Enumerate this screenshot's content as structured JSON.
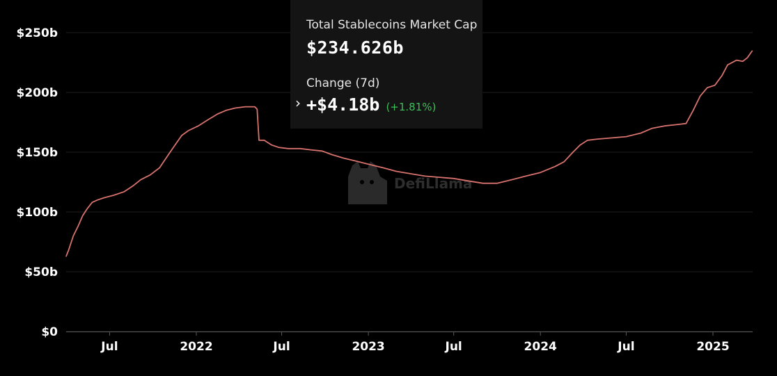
{
  "chart_data": {
    "type": "line",
    "title": "",
    "xlabel": "",
    "ylabel": "",
    "ylim": [
      0,
      250
    ],
    "y_ticks": [
      {
        "value": 0,
        "label": "$0"
      },
      {
        "value": 50,
        "label": "$50b"
      },
      {
        "value": 100,
        "label": "$100b"
      },
      {
        "value": 150,
        "label": "$150b"
      },
      {
        "value": 200,
        "label": "$200b"
      },
      {
        "value": 250,
        "label": "$250b"
      }
    ],
    "x_ticks": [
      {
        "date": "2021-07-01",
        "label": "Jul"
      },
      {
        "date": "2022-01-01",
        "label": "2022"
      },
      {
        "date": "2022-07-01",
        "label": "Jul"
      },
      {
        "date": "2023-01-01",
        "label": "2023"
      },
      {
        "date": "2023-07-01",
        "label": "Jul"
      },
      {
        "date": "2024-01-01",
        "label": "2024"
      },
      {
        "date": "2024-07-01",
        "label": "Jul"
      },
      {
        "date": "2025-01-01",
        "label": "2025"
      }
    ],
    "series": [
      {
        "color": "#d9736e",
        "points": [
          [
            "2021-03-31",
            63
          ],
          [
            "2021-04-05",
            68
          ],
          [
            "2021-04-15",
            80
          ],
          [
            "2021-04-25",
            88
          ],
          [
            "2021-05-05",
            97
          ],
          [
            "2021-05-15",
            103
          ],
          [
            "2021-05-25",
            108
          ],
          [
            "2021-06-05",
            110
          ],
          [
            "2021-06-20",
            112
          ],
          [
            "2021-07-10",
            114
          ],
          [
            "2021-08-01",
            117
          ],
          [
            "2021-08-20",
            122
          ],
          [
            "2021-09-05",
            127
          ],
          [
            "2021-09-25",
            131
          ],
          [
            "2021-10-15",
            137
          ],
          [
            "2021-11-01",
            147
          ],
          [
            "2021-11-15",
            155
          ],
          [
            "2021-12-01",
            164
          ],
          [
            "2021-12-15",
            168
          ],
          [
            "2022-01-05",
            172
          ],
          [
            "2022-01-25",
            177
          ],
          [
            "2022-02-15",
            182
          ],
          [
            "2022-03-05",
            185
          ],
          [
            "2022-03-25",
            187
          ],
          [
            "2022-04-15",
            188
          ],
          [
            "2022-05-05",
            188
          ],
          [
            "2022-05-10",
            186
          ],
          [
            "2022-05-14",
            160
          ],
          [
            "2022-05-25",
            160
          ],
          [
            "2022-06-10",
            156
          ],
          [
            "2022-06-25",
            154
          ],
          [
            "2022-07-15",
            153
          ],
          [
            "2022-08-10",
            153
          ],
          [
            "2022-09-01",
            152
          ],
          [
            "2022-09-25",
            151
          ],
          [
            "2022-10-15",
            148
          ],
          [
            "2022-11-10",
            145
          ],
          [
            "2022-12-01",
            143
          ],
          [
            "2023-01-01",
            140
          ],
          [
            "2023-02-01",
            137
          ],
          [
            "2023-03-01",
            134
          ],
          [
            "2023-04-01",
            132
          ],
          [
            "2023-05-01",
            130
          ],
          [
            "2023-06-01",
            129
          ],
          [
            "2023-07-01",
            128
          ],
          [
            "2023-08-01",
            126
          ],
          [
            "2023-09-01",
            124
          ],
          [
            "2023-10-01",
            124
          ],
          [
            "2023-11-01",
            127
          ],
          [
            "2023-12-01",
            130
          ],
          [
            "2024-01-01",
            133
          ],
          [
            "2024-02-01",
            138
          ],
          [
            "2024-02-20",
            142
          ],
          [
            "2024-03-10",
            150
          ],
          [
            "2024-03-25",
            156
          ],
          [
            "2024-04-10",
            160
          ],
          [
            "2024-05-01",
            161
          ],
          [
            "2024-06-01",
            162
          ],
          [
            "2024-07-01",
            163
          ],
          [
            "2024-08-01",
            166
          ],
          [
            "2024-08-25",
            170
          ],
          [
            "2024-09-20",
            172
          ],
          [
            "2024-10-15",
            173
          ],
          [
            "2024-11-05",
            174
          ],
          [
            "2024-11-20",
            185
          ],
          [
            "2024-12-05",
            197
          ],
          [
            "2024-12-20",
            204
          ],
          [
            "2025-01-05",
            206
          ],
          [
            "2025-01-20",
            214
          ],
          [
            "2025-02-01",
            223
          ],
          [
            "2025-02-20",
            227
          ],
          [
            "2025-03-05",
            226
          ],
          [
            "2025-03-15",
            229
          ],
          [
            "2025-03-25",
            234.626
          ]
        ]
      }
    ]
  },
  "tooltip": {
    "title": "Total Stablecoins Market Cap",
    "value": "$234.626b",
    "change_label": "Change (7d)",
    "chevron": "›",
    "change_value": "+$4.18b",
    "change_pct": "(+1.81%)",
    "accent_color": "#3fbf5a"
  },
  "watermark": {
    "text": "DefiLlama",
    "icon": "llama-logo-icon"
  }
}
